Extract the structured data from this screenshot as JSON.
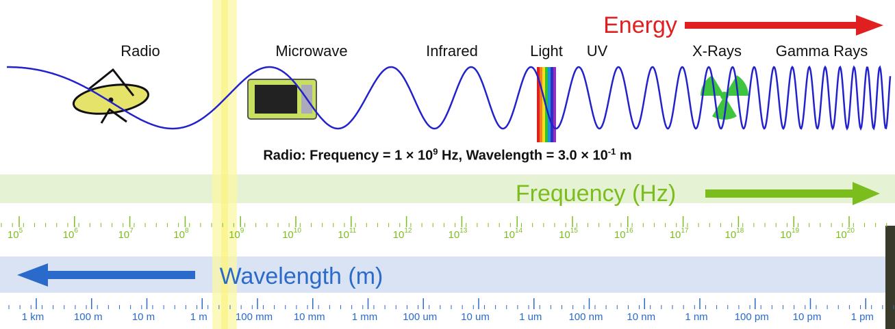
{
  "energy_label": "Energy",
  "bands": [
    "Radio",
    "Microwave",
    "Infrared",
    "Light",
    "UV",
    "X-Rays",
    "Gamma Rays"
  ],
  "info": {
    "prefix": "Radio: Frequency = 1 × 10",
    "frequency_exponent": "9",
    "middle": " Hz, Wavelength = 3.0 × 10",
    "wavelength_exponent": "-1",
    "suffix": " m"
  },
  "frequency_label": "Frequency (Hz)",
  "frequency_ticks": [
    {
      "base": "10",
      "exp": "5"
    },
    {
      "base": "10",
      "exp": "6"
    },
    {
      "base": "10",
      "exp": "7"
    },
    {
      "base": "10",
      "exp": "8"
    },
    {
      "base": "10",
      "exp": "9"
    },
    {
      "base": "10",
      "exp": "10"
    },
    {
      "base": "10",
      "exp": "11"
    },
    {
      "base": "10",
      "exp": "12"
    },
    {
      "base": "10",
      "exp": "13"
    },
    {
      "base": "10",
      "exp": "14"
    },
    {
      "base": "10",
      "exp": "15"
    },
    {
      "base": "10",
      "exp": "16"
    },
    {
      "base": "10",
      "exp": "17"
    },
    {
      "base": "10",
      "exp": "18"
    },
    {
      "base": "10",
      "exp": "19"
    },
    {
      "base": "10",
      "exp": "20"
    }
  ],
  "wavelength_label": "Wavelength (m)",
  "wavelength_ticks": [
    "1 km",
    "100 m",
    "10 m",
    "1 m",
    "100 mm",
    "10 mm",
    "1 mm",
    "100 um",
    "10 um",
    "1 um",
    "100 nm",
    "10 nm",
    "1 nm",
    "100 pm",
    "10 pm",
    "1 pm"
  ]
}
